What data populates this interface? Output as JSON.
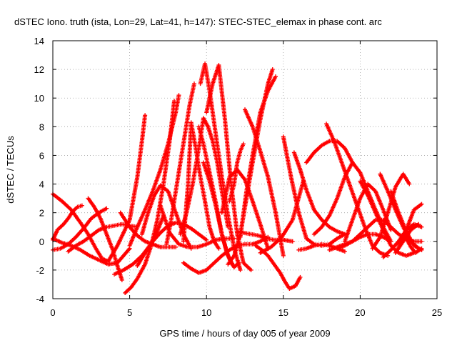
{
  "chart_data": {
    "type": "scatter",
    "title": "dSTEC Iono. truth (ista, Lon=29, Lat=41, h=147): STEC-STEC_elemax in phase cont. arc",
    "xlabel": "GPS time / hours of day 005 of year 2009",
    "ylabel": "dSTEC  / TECUs",
    "xlim": [
      0,
      25
    ],
    "ylim": [
      -4,
      14
    ],
    "xticks": [
      0,
      5,
      10,
      15,
      20,
      25
    ],
    "yticks": [
      -4,
      -2,
      0,
      2,
      4,
      6,
      8,
      10,
      12,
      14
    ],
    "grid": true,
    "marker": "+",
    "color": "#ff0000",
    "series": [
      {
        "x": [
          0.0,
          0.3,
          0.7,
          1.0,
          1.3,
          1.6,
          1.9
        ],
        "y": [
          0.1,
          0.8,
          1.2,
          1.6,
          2.1,
          2.4,
          2.5
        ]
      },
      {
        "x": [
          0.0,
          0.6,
          1.2,
          1.8,
          2.3,
          2.8,
          3.2,
          3.6,
          4.2,
          5.0,
          5.5,
          5.8,
          6.0
        ],
        "y": [
          3.3,
          2.8,
          2.2,
          1.3,
          0.5,
          -0.5,
          -1.2,
          -1.4,
          -0.3,
          1.5,
          4.5,
          7.0,
          8.8
        ]
      },
      {
        "x": [
          0.0,
          0.5,
          1.0,
          1.5,
          2.0,
          2.5,
          3.0,
          3.5
        ],
        "y": [
          -0.6,
          -0.5,
          -0.2,
          0.3,
          0.9,
          1.6,
          2.0,
          2.3
        ]
      },
      {
        "x": [
          0.0,
          0.6,
          1.2,
          1.8,
          2.4,
          3.0,
          3.6,
          4.2,
          4.6,
          5.0
        ],
        "y": [
          0.2,
          -0.1,
          -0.3,
          -0.6,
          -1.0,
          -1.3,
          -1.6,
          -1.5,
          -1.0,
          -0.5
        ]
      },
      {
        "x": [
          2.3,
          2.7,
          3.1,
          3.5,
          3.9,
          4.2,
          4.5
        ],
        "y": [
          3.0,
          2.4,
          1.6,
          0.5,
          -0.6,
          -1.7,
          -2.7
        ]
      },
      {
        "x": [
          4.4,
          4.7,
          5.0,
          5.5,
          6.0,
          6.5,
          7.0,
          7.5,
          8.0
        ],
        "y": [
          2.0,
          1.5,
          1.0,
          0.4,
          0.0,
          -0.2,
          -0.4,
          -0.4,
          -0.4
        ]
      },
      {
        "x": [
          1.0,
          1.5,
          2.0,
          2.5,
          3.0,
          3.5,
          4.0,
          4.5,
          5.0,
          5.5
        ],
        "y": [
          -0.7,
          -0.3,
          0.0,
          0.4,
          0.8,
          1.0,
          1.1,
          1.2,
          1.1,
          1.0
        ]
      },
      {
        "x": [
          4.7,
          5.1,
          5.5,
          6.0,
          6.4,
          6.8,
          7.2,
          7.6,
          7.9
        ],
        "y": [
          -3.6,
          -3.2,
          -2.6,
          -1.6,
          -0.3,
          1.5,
          4.0,
          7.0,
          9.8
        ]
      },
      {
        "x": [
          4.0,
          4.6,
          5.2,
          5.8,
          6.3,
          6.8,
          7.2
        ],
        "y": [
          -2.3,
          -2.0,
          -1.6,
          -1.0,
          -0.3,
          0.7,
          1.8
        ]
      },
      {
        "x": [
          5.0,
          5.5,
          6.0,
          6.5,
          7.0,
          7.5,
          8.0,
          8.2
        ],
        "y": [
          -0.3,
          1.0,
          2.2,
          3.5,
          5.0,
          6.8,
          9.0,
          10.2
        ]
      },
      {
        "x": [
          5.8,
          6.2,
          6.6,
          7.0,
          7.5,
          8.0,
          8.5,
          9.0
        ],
        "y": [
          0.5,
          2.0,
          3.2,
          3.9,
          3.5,
          2.0,
          0.5,
          -0.5
        ]
      },
      {
        "x": [
          5.5,
          6.0,
          6.5,
          7.0,
          7.5,
          8.0,
          8.5,
          9.0,
          9.5,
          10.0
        ],
        "y": [
          -1.7,
          -0.8,
          0.0,
          0.6,
          1.1,
          1.3,
          1.2,
          0.9,
          0.5,
          0.1
        ]
      },
      {
        "x": [
          7.0,
          7.6,
          8.2,
          8.8,
          9.4,
          10.0,
          10.6,
          11.2,
          11.8
        ],
        "y": [
          2.5,
          0.6,
          -0.2,
          -0.4,
          -0.4,
          -0.2,
          0.1,
          0.2,
          0.2
        ]
      },
      {
        "x": [
          7.4,
          7.7,
          8.0,
          8.3,
          8.6,
          8.9,
          9.2
        ],
        "y": [
          -0.2,
          1.5,
          3.5,
          5.5,
          7.5,
          9.5,
          11.0
        ]
      },
      {
        "x": [
          8.5,
          8.8,
          9.0,
          9.3,
          9.6,
          9.9,
          10.2,
          10.5,
          10.8
        ],
        "y": [
          0.0,
          4.0,
          8.3,
          6.5,
          4.5,
          2.8,
          1.0,
          0.0,
          -0.5
        ]
      },
      {
        "x": [
          8.3,
          8.7,
          9.1,
          9.5,
          9.8,
          10.1,
          10.4,
          10.7,
          11.0,
          11.4
        ],
        "y": [
          0.5,
          2.0,
          4.0,
          6.5,
          8.6,
          8.0,
          7.0,
          5.5,
          3.5,
          1.0
        ]
      },
      {
        "x": [
          9.5,
          9.8,
          10.1,
          10.4,
          10.7,
          11.0,
          11.3,
          11.6,
          11.8
        ],
        "y": [
          8.0,
          6.8,
          5.3,
          3.8,
          2.2,
          0.5,
          -0.7,
          -1.5,
          -1.8
        ]
      },
      {
        "x": [
          9.6,
          9.9,
          10.2,
          10.6,
          11.0,
          11.4,
          11.8,
          12.2
        ],
        "y": [
          11.0,
          12.4,
          10.5,
          7.5,
          4.5,
          1.8,
          -0.5,
          -2.0
        ]
      },
      {
        "x": [
          10.0,
          10.4,
          10.8,
          11.2,
          11.6,
          12.0,
          12.4,
          12.9
        ],
        "y": [
          9.0,
          11.0,
          12.3,
          8.5,
          4.0,
          0.5,
          -1.5,
          -2.0
        ]
      },
      {
        "x": [
          9.8,
          10.2,
          10.6,
          11.0,
          11.4,
          11.8,
          12.1
        ],
        "y": [
          5.5,
          4.2,
          2.5,
          0.5,
          -1.0,
          -1.8,
          -1.5
        ]
      },
      {
        "x": [
          8.5,
          9.0,
          9.5,
          10.0,
          10.5,
          11.0,
          11.5,
          12.0,
          12.5,
          13.0,
          13.5,
          14.0
        ],
        "y": [
          -1.5,
          -1.9,
          -2.2,
          -2.0,
          -1.5,
          -1.0,
          -0.6,
          -0.3,
          -0.2,
          -0.2,
          0.0,
          0.3
        ]
      },
      {
        "x": [
          11.0,
          11.5,
          12.0,
          12.5,
          13.0,
          13.5,
          14.0
        ],
        "y": [
          2.0,
          4.5,
          5.0,
          4.3,
          2.8,
          1.2,
          -0.5
        ]
      },
      {
        "x": [
          11.5,
          11.8,
          12.0,
          12.2,
          12.4
        ],
        "y": [
          2.8,
          4.0,
          5.5,
          6.3,
          6.8
        ]
      },
      {
        "x": [
          12.5,
          13.0,
          13.5,
          14.0,
          14.5,
          15.0
        ],
        "y": [
          9.2,
          8.0,
          6.3,
          4.5,
          2.0,
          -1.0
        ]
      },
      {
        "x": [
          11.4,
          11.8,
          12.2,
          12.6,
          13.0,
          13.5,
          14.0,
          14.3
        ],
        "y": [
          -1.6,
          -1.0,
          0.5,
          3.0,
          5.5,
          8.5,
          11.0,
          12.0
        ]
      },
      {
        "x": [
          12.2,
          12.6,
          13.0,
          13.5,
          14.0,
          14.5
        ],
        "y": [
          0.3,
          3.5,
          6.0,
          9.0,
          10.5,
          11.5
        ]
      },
      {
        "x": [
          12.0,
          12.4,
          12.9,
          13.4,
          13.9,
          14.4,
          15.0,
          15.6
        ],
        "y": [
          0.7,
          0.6,
          0.5,
          0.4,
          0.2,
          0.1,
          0.1,
          0.0
        ]
      },
      {
        "x": [
          13.5,
          14.2,
          14.9,
          15.6,
          16.3
        ],
        "y": [
          -0.8,
          -0.4,
          0.3,
          1.5,
          4.2
        ]
      },
      {
        "x": [
          15.0,
          15.5,
          16.0,
          16.5,
          17.0,
          17.5,
          18.0,
          18.5,
          19.0
        ],
        "y": [
          7.3,
          4.5,
          2.0,
          0.2,
          -0.2,
          -0.3,
          -0.2,
          0.2,
          0.5
        ]
      },
      {
        "x": [
          16.0,
          16.5,
          17.0,
          17.5,
          18.0,
          18.5,
          19.0
        ],
        "y": [
          -0.6,
          -0.5,
          -0.3,
          -0.2,
          -0.3,
          -0.5,
          -0.7
        ]
      },
      {
        "x": [
          13.2,
          13.6,
          14.0,
          14.4,
          14.8,
          15.1,
          15.4,
          15.8,
          16.1
        ],
        "y": [
          -0.3,
          -0.6,
          -1.0,
          -1.6,
          -2.2,
          -2.8,
          -3.3,
          -3.1,
          -2.5
        ]
      },
      {
        "x": [
          15.7,
          16.1,
          16.5,
          17.0,
          17.5,
          18.0,
          18.5,
          19.0
        ],
        "y": [
          6.2,
          5.0,
          3.6,
          2.2,
          1.5,
          1.0,
          0.7,
          0.5
        ]
      },
      {
        "x": [
          17.0,
          17.5,
          18.0,
          18.5,
          19.0,
          19.5,
          20.0,
          20.5,
          21.0,
          21.5,
          22.0
        ],
        "y": [
          0.5,
          1.0,
          1.8,
          3.0,
          4.5,
          5.5,
          4.8,
          3.5,
          2.2,
          1.0,
          0.0
        ]
      },
      {
        "x": [
          16.5,
          17.0,
          17.5,
          18.0,
          18.5,
          19.0,
          19.5
        ],
        "y": [
          5.5,
          6.2,
          6.7,
          7.0,
          7.0,
          6.5,
          5.5
        ]
      },
      {
        "x": [
          17.8,
          18.3,
          18.8,
          19.3,
          19.8,
          20.3,
          20.8,
          21.3,
          21.8
        ],
        "y": [
          8.2,
          7.0,
          5.5,
          4.0,
          2.5,
          1.0,
          -0.3,
          -0.8,
          -1.0
        ]
      },
      {
        "x": [
          18.0,
          18.5,
          19.0,
          19.5,
          20.0,
          20.5,
          21.0,
          21.5,
          22.0
        ],
        "y": [
          -0.6,
          -0.4,
          -0.2,
          0.0,
          0.3,
          0.5,
          0.5,
          0.3,
          0.0
        ]
      },
      {
        "x": [
          18.5,
          19.0,
          19.5,
          20.0,
          20.5,
          21.0,
          21.5,
          22.0,
          22.5,
          23.0,
          23.5,
          24.0
        ],
        "y": [
          -0.5,
          -0.3,
          0.0,
          0.5,
          1.0,
          1.5,
          1.5,
          1.0,
          0.5,
          0.2,
          0.0,
          0.0
        ]
      },
      {
        "x": [
          19.0,
          19.5,
          20.0,
          20.5,
          21.0,
          21.5,
          22.0
        ],
        "y": [
          0.0,
          1.5,
          3.0,
          4.0,
          3.5,
          2.2,
          0.8
        ]
      },
      {
        "x": [
          20.0,
          20.5,
          21.0,
          21.5,
          22.0,
          22.5,
          23.0,
          23.5
        ],
        "y": [
          4.2,
          3.2,
          2.0,
          0.8,
          -0.3,
          -0.8,
          -1.0,
          -0.8
        ]
      },
      {
        "x": [
          20.8,
          21.3,
          21.8,
          22.3,
          22.8,
          23.2
        ],
        "y": [
          -0.5,
          0.3,
          2.0,
          3.8,
          4.7,
          4.0
        ]
      },
      {
        "x": [
          21.3,
          21.8,
          22.3,
          22.8,
          23.3,
          23.8,
          24.0
        ],
        "y": [
          4.7,
          3.5,
          2.2,
          1.0,
          0.0,
          -0.5,
          -0.6
        ]
      },
      {
        "x": [
          21.5,
          22.0,
          22.5,
          23.0,
          23.5,
          24.0
        ],
        "y": [
          -1.1,
          -0.6,
          0.0,
          0.8,
          1.2,
          1.0
        ]
      },
      {
        "x": [
          22.0,
          22.5,
          23.0,
          23.5,
          24.0
        ],
        "y": [
          3.5,
          2.0,
          0.7,
          -0.3,
          -0.6
        ]
      },
      {
        "x": [
          22.3,
          22.8,
          23.3,
          23.8
        ],
        "y": [
          -0.8,
          0.0,
          0.8,
          1.2
        ]
      },
      {
        "x": [
          22.5,
          23.0,
          23.5,
          24.0
        ],
        "y": [
          -0.4,
          0.8,
          2.2,
          2.6
        ]
      },
      {
        "x": [
          23.0,
          23.3,
          23.6,
          24.0
        ],
        "y": [
          0.2,
          -0.4,
          -0.8,
          -0.5
        ]
      }
    ]
  }
}
